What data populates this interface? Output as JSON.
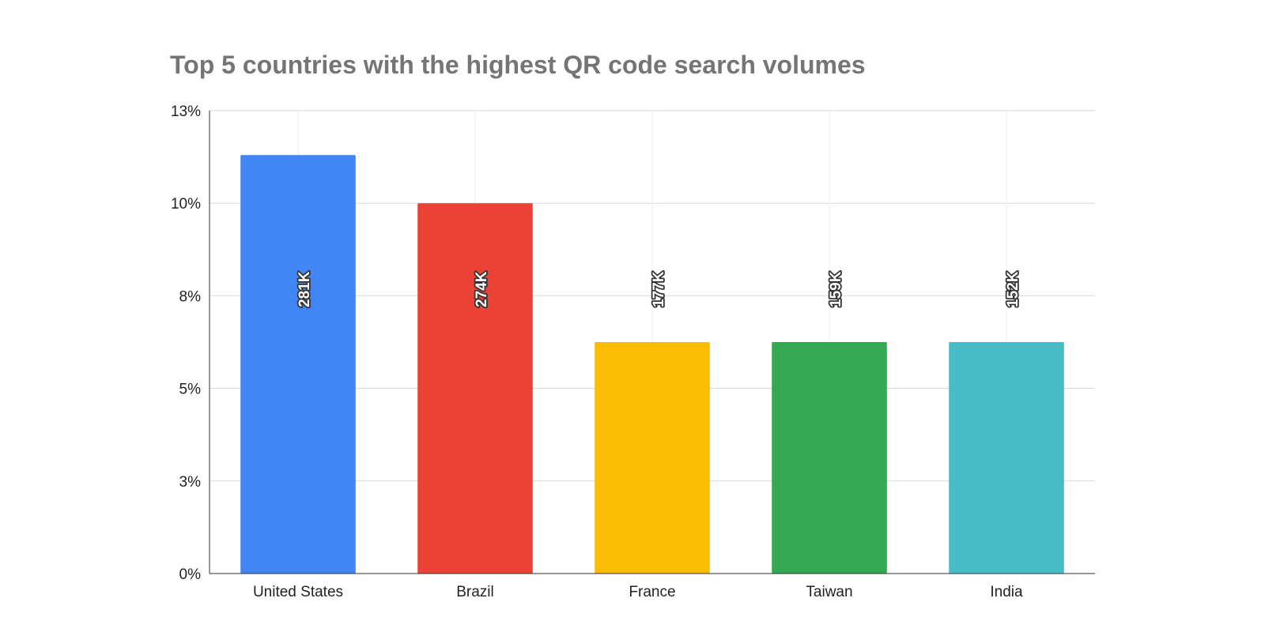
{
  "chart_data": {
    "type": "bar",
    "title": "Top 5 countries with the highest QR code search volumes",
    "xlabel": "",
    "ylabel": "",
    "categories": [
      "United States",
      "Brazil",
      "France",
      "Taiwan",
      "India"
    ],
    "values": [
      11.3,
      10.0,
      6.25,
      6.25,
      6.25
    ],
    "data_labels": [
      "281K",
      "274K",
      "177K",
      "159K",
      "152K"
    ],
    "colors": [
      "#4285f4",
      "#ea4335",
      "#fbbc04",
      "#34a853",
      "#46bdc6"
    ],
    "ylim": [
      0,
      12.5
    ],
    "y_ticks": [
      {
        "value": 0,
        "label": "0%"
      },
      {
        "value": 2.5,
        "label": "3%"
      },
      {
        "value": 5,
        "label": "5%"
      },
      {
        "value": 7.5,
        "label": "8%"
      },
      {
        "value": 10,
        "label": "10%"
      },
      {
        "value": 12.5,
        "label": "13%"
      }
    ],
    "grid": true,
    "legend": "none"
  }
}
